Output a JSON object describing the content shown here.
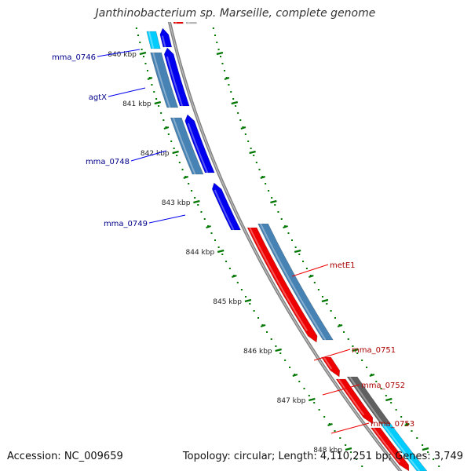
{
  "title": "Janthinobacterium sp. Marseille, complete genome",
  "footer": {
    "accession": "Accession: NC_009659",
    "summary": "Topology: circular; Length: 4,110,251 bp; Genes: 3,749"
  },
  "colors": {
    "forward": "#0000ee",
    "reverse": "#ee0000",
    "cds": "#4682b4",
    "other_gene": "#606060",
    "rna": "#00ccff",
    "tick": "#007700",
    "backbone": "#808080"
  },
  "scale": {
    "unit": "kbp",
    "ticks": [
      "840 kbp",
      "841 kbp",
      "842 kbp",
      "843 kbp",
      "844 kbp",
      "845 kbp",
      "846 kbp",
      "847 kbp",
      "848 kbp"
    ]
  },
  "labels": {
    "forward": [
      "mma_0746",
      "agtX",
      "mma_0748",
      "mma_0749"
    ],
    "reverse": [
      "metE1",
      "mma_0751",
      "mma_0752",
      "mma_0753"
    ]
  }
}
